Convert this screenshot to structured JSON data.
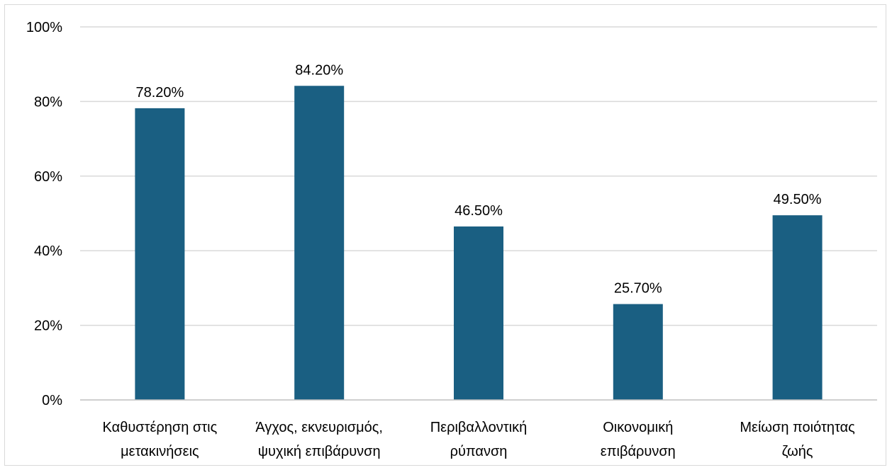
{
  "chart_data": {
    "type": "bar",
    "title": "",
    "xlabel": "",
    "ylabel": "",
    "categories": [
      [
        "Καθυστέρηση στις",
        "μετακινήσεις"
      ],
      [
        "Άγχος, εκνευρισμός,",
        "ψυχική επιβάρυνση"
      ],
      [
        "Περιβαλλοντική",
        "ρύπανση"
      ],
      [
        "Οικονομική",
        "επιβάρυνση"
      ],
      [
        "Μείωση ποιότητας",
        "ζωής"
      ]
    ],
    "values": [
      78.2,
      84.2,
      46.5,
      25.7,
      49.5
    ],
    "data_labels": [
      "78.20%",
      "84.20%",
      "46.50%",
      "25.70%",
      "49.50%"
    ],
    "ylim": [
      0,
      100
    ],
    "y_ticks": [
      0,
      20,
      40,
      60,
      80,
      100
    ],
    "y_tick_labels": [
      "0%",
      "20%",
      "40%",
      "60%",
      "80%",
      "100%"
    ],
    "grid": true,
    "legend": "none",
    "colors": {
      "bar": "#1a5f82",
      "grid": "#d9d9d9",
      "axis": "#bfbfbf",
      "text": "#000000"
    }
  }
}
